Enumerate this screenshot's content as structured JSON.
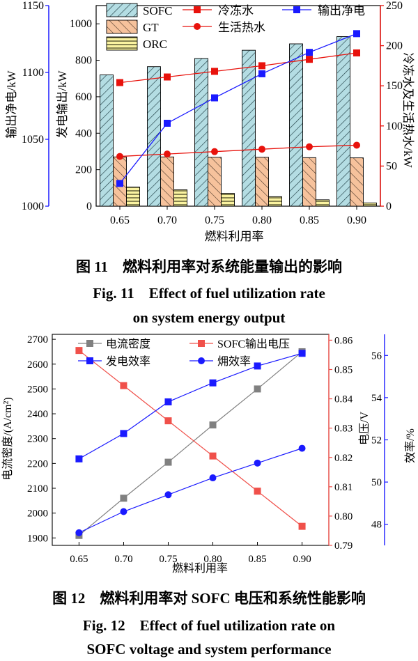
{
  "figure11": {
    "caption_zh": "图 11　燃料利用率对系统能量输出的影响",
    "caption_en_1": "Fig. 11　Effect of fuel utilization rate",
    "caption_en_2": "on system energy output",
    "chart_data": {
      "type": "bar",
      "categories": [
        "0.65",
        "0.70",
        "0.75",
        "0.80",
        "0.85",
        "0.90"
      ],
      "xlabel": "燃料利用率",
      "ylabel_left_outer": "输出净电/kW",
      "ylabel_left_inner": "发电输出/kW",
      "ylabel_right": "冷冻水及生活热水/kW",
      "ylim_left_outer": [
        1000,
        1150
      ],
      "yticks_left_outer": [
        "1000",
        "1050",
        "1100",
        "1150"
      ],
      "ylim_left_inner": [
        0,
        1100
      ],
      "yticks_left_inner": [
        "0",
        "200",
        "400",
        "600",
        "800",
        "1000"
      ],
      "ylim_right": [
        0,
        250
      ],
      "yticks_right": [
        "0",
        "50",
        "100",
        "150",
        "200",
        "250"
      ],
      "bars": [
        {
          "name": "SOFC",
          "axis": "inner",
          "values": [
            720,
            765,
            810,
            855,
            890,
            930
          ]
        },
        {
          "name": "GT",
          "axis": "inner",
          "values": [
            270,
            270,
            268,
            268,
            266,
            265
          ]
        },
        {
          "name": "ORC",
          "axis": "inner",
          "values": [
            105,
            90,
            70,
            52,
            35,
            18
          ]
        }
      ],
      "lines": [
        {
          "name": "冷冻水",
          "axis": "right",
          "marker": "square",
          "color": "#e8120c",
          "values": [
            154,
            161,
            168,
            175,
            183,
            191
          ]
        },
        {
          "name": "生活热水",
          "axis": "right",
          "marker": "circle",
          "color": "#e8120c",
          "values": [
            62,
            65,
            68,
            71,
            74,
            76
          ]
        },
        {
          "name": "输出净电",
          "axis": "outer",
          "marker": "square",
          "color": "#1a1aff",
          "values": [
            1017,
            1062,
            1081,
            1099,
            1115,
            1129
          ]
        }
      ],
      "legend_placement": "top"
    }
  },
  "figure12": {
    "caption_zh": "图 12　燃料利用率对 SOFC 电压和系统性能影响",
    "caption_en_1": "Fig. 12　Effect of fuel utilization rate on",
    "caption_en_2": "SOFC voltage and system performance",
    "chart_data": {
      "type": "line",
      "x": [
        0.65,
        0.7,
        0.75,
        0.8,
        0.85,
        0.9
      ],
      "xticks": [
        "0.65",
        "0.70",
        "0.75",
        "0.80",
        "0.85",
        "0.90"
      ],
      "xlabel": "燃料利用率",
      "ylabel_left": "电流密度/(A/cm²)",
      "ylabel_right_inner": "电压/V",
      "ylabel_right_outer": "效率/%",
      "ylim_left": [
        1870,
        2720
      ],
      "yticks_left": [
        "1900",
        "2000",
        "2100",
        "2200",
        "2300",
        "2400",
        "2500",
        "2600",
        "2700"
      ],
      "ylim_right_inner": [
        0.79,
        0.862
      ],
      "yticks_right_inner": [
        "0.79",
        "0.80",
        "0.81",
        "0.82",
        "0.83",
        "0.84",
        "0.85",
        "0.86"
      ],
      "ylim_right_outer": [
        47,
        57
      ],
      "yticks_right_outer": [
        "48",
        "50",
        "52",
        "54",
        "56"
      ],
      "series": [
        {
          "name": "电流密度",
          "axis": "left",
          "marker": "square",
          "color": "#808080",
          "values": [
            1910,
            2060,
            2205,
            2355,
            2500,
            2650
          ]
        },
        {
          "name": "SOFC输出电压",
          "axis": "right_inner",
          "marker": "square",
          "color": "#f0504a",
          "values": [
            0.8565,
            0.8445,
            0.8325,
            0.8205,
            0.8085,
            0.7965
          ]
        },
        {
          "name": "发电效率",
          "axis": "right_outer",
          "marker": "square",
          "color": "#1a1aff",
          "values": [
            51.1,
            52.3,
            53.8,
            54.7,
            55.5,
            56.1
          ]
        },
        {
          "name": "㶲效率",
          "axis": "right_outer",
          "marker": "circle",
          "color": "#1a1aff",
          "values": [
            47.6,
            48.6,
            49.4,
            50.2,
            50.9,
            51.6
          ]
        }
      ],
      "legend_placement": "top-left"
    }
  }
}
